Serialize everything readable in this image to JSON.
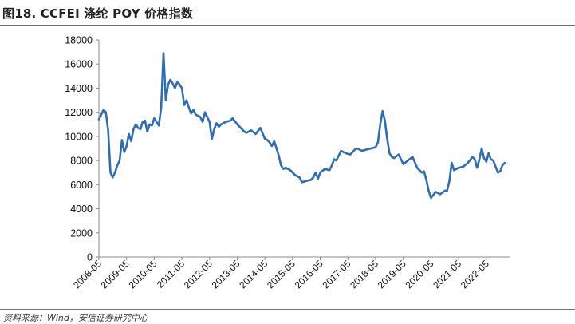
{
  "title": "图18. CCFEI 涤纶 POY 价格指数",
  "source": "资料来源：Wind，安信证券研究中心",
  "chart_data": {
    "type": "line",
    "title": "图18. CCFEI 涤纶 POY 价格指数",
    "xlabel": "",
    "ylabel": "",
    "ylim": [
      0,
      18000
    ],
    "yticks": [
      0,
      2000,
      4000,
      6000,
      8000,
      10000,
      12000,
      14000,
      16000,
      18000
    ],
    "xticks": [
      "2008-05",
      "2009-05",
      "2010-05",
      "2011-05",
      "2012-05",
      "2013-05",
      "2014-05",
      "2015-05",
      "2016-05",
      "2017-05",
      "2018-05",
      "2019-05",
      "2020-05",
      "2021-05",
      "2022-05"
    ],
    "grid": false,
    "legend": "none",
    "colors": {
      "line": "#2e6db4"
    },
    "series": [
      {
        "x": [
          "2008-05",
          "2008-07",
          "2008-08",
          "2008-09",
          "2008-10",
          "2008-11",
          "2008-12",
          "2009-01",
          "2009-02",
          "2009-03",
          "2009-04",
          "2009-05",
          "2009-06",
          "2009-07",
          "2009-08",
          "2009-09",
          "2009-10",
          "2009-11",
          "2009-12",
          "2010-01",
          "2010-02",
          "2010-03",
          "2010-04",
          "2010-05",
          "2010-06",
          "2010-07",
          "2010-08",
          "2010-09",
          "2010-10",
          "2010-11",
          "2010-12",
          "2011-01",
          "2011-02",
          "2011-03",
          "2011-04",
          "2011-05",
          "2011-06",
          "2011-07",
          "2011-08",
          "2011-09",
          "2011-10",
          "2011-11",
          "2011-12",
          "2012-01",
          "2012-02",
          "2012-03",
          "2012-05",
          "2012-06",
          "2012-07",
          "2012-08",
          "2012-09",
          "2012-10",
          "2012-12",
          "2013-02",
          "2013-03",
          "2013-05",
          "2013-07",
          "2013-08",
          "2013-09",
          "2013-11",
          "2014-01",
          "2014-03",
          "2014-05",
          "2014-06",
          "2014-07",
          "2014-08",
          "2014-09",
          "2014-10",
          "2014-11",
          "2014-12",
          "2015-01",
          "2015-02",
          "2015-04",
          "2015-06",
          "2015-08",
          "2015-09",
          "2015-11",
          "2016-01",
          "2016-02",
          "2016-03",
          "2016-04",
          "2016-05",
          "2016-07",
          "2016-09",
          "2016-10",
          "2016-11",
          "2016-12",
          "2017-01",
          "2017-02",
          "2017-04",
          "2017-06",
          "2017-08",
          "2017-09",
          "2017-11",
          "2018-01",
          "2018-03",
          "2018-05",
          "2018-06",
          "2018-07",
          "2018-08",
          "2018-09",
          "2018-10",
          "2018-11",
          "2018-12",
          "2019-01",
          "2019-03",
          "2019-05",
          "2019-07",
          "2019-09",
          "2019-11",
          "2020-01",
          "2020-02",
          "2020-03",
          "2020-04",
          "2020-05",
          "2020-07",
          "2020-09",
          "2020-11",
          "2020-12",
          "2021-01",
          "2021-02",
          "2021-03",
          "2021-05",
          "2021-07",
          "2021-09",
          "2021-11",
          "2021-12",
          "2022-01",
          "2022-02",
          "2022-03",
          "2022-04",
          "2022-05",
          "2022-06",
          "2022-07",
          "2022-08",
          "2022-09",
          "2022-10",
          "2022-11",
          "2022-12",
          "2023-01"
        ],
        "values": [
          11400,
          12200,
          12000,
          10500,
          7000,
          6600,
          7000,
          7600,
          8000,
          9700,
          8700,
          9200,
          10200,
          9600,
          10600,
          11000,
          10700,
          10600,
          11200,
          11300,
          10400,
          11000,
          10900,
          11500,
          11200,
          10900,
          12400,
          16900,
          13000,
          14300,
          14700,
          14400,
          14000,
          14500,
          14300,
          14000,
          12600,
          13000,
          12400,
          11900,
          12200,
          11800,
          11700,
          11600,
          11200,
          12000,
          11200,
          9800,
          10600,
          11100,
          10800,
          11000,
          11200,
          11300,
          11500,
          11000,
          10600,
          10400,
          10300,
          10500,
          10200,
          10700,
          9800,
          9700,
          9500,
          9200,
          9600,
          9000,
          8400,
          7600,
          7300,
          7400,
          7200,
          6800,
          6600,
          6200,
          6300,
          6400,
          6600,
          7000,
          6500,
          7000,
          7300,
          7200,
          7600,
          8100,
          8000,
          8400,
          8800,
          8600,
          8500,
          8900,
          9000,
          8800,
          8900,
          9000,
          9100,
          9500,
          11000,
          12100,
          11300,
          9800,
          8600,
          8300,
          8200,
          8500,
          7700,
          8000,
          8300,
          7400,
          7000,
          7100,
          6400,
          5500,
          4900,
          5400,
          5200,
          5500,
          5500,
          6300,
          7800,
          7200,
          7400,
          7500,
          7800,
          8300,
          8100,
          7400,
          8100,
          9000,
          8200,
          7900,
          8600,
          8100,
          8000,
          7500,
          7000,
          7100,
          7600,
          7800
        ]
      }
    ]
  }
}
